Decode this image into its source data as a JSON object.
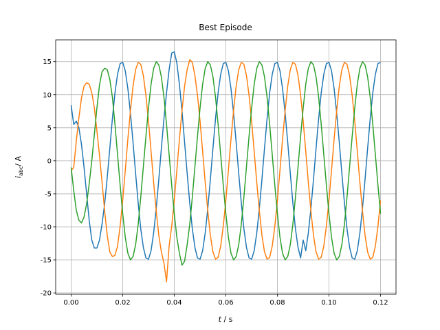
{
  "chart_data": {
    "type": "line",
    "title": "Best Episode",
    "xlabel_symbol": "t",
    "xlabel_unit": "/ s",
    "ylabel_symbol": "i",
    "ylabel_subscript": "abc",
    "ylabel_unit": "/ A",
    "grid": true,
    "xlim": [
      -0.006,
      0.126
    ],
    "ylim": [
      -20.2,
      18.3
    ],
    "xticks": [
      {
        "value": 0,
        "label": "0.00"
      },
      {
        "value": 0.02,
        "label": "0.02"
      },
      {
        "value": 0.04,
        "label": "0.04"
      },
      {
        "value": 0.06,
        "label": "0.06"
      },
      {
        "value": 0.08,
        "label": "0.08"
      },
      {
        "value": 0.1,
        "label": "0.10"
      },
      {
        "value": 0.12,
        "label": "0.12"
      }
    ],
    "yticks": [
      -20,
      -15,
      -10,
      -5,
      0,
      5,
      10,
      15
    ],
    "x": [
      0,
      0.001,
      0.002,
      0.003,
      0.004,
      0.005,
      0.006,
      0.007,
      0.008,
      0.009,
      0.01,
      0.011,
      0.012,
      0.013,
      0.014,
      0.015,
      0.016,
      0.017,
      0.018,
      0.019,
      0.02,
      0.021,
      0.022,
      0.023,
      0.024,
      0.025,
      0.026,
      0.027,
      0.028,
      0.029,
      0.03,
      0.031,
      0.032,
      0.033,
      0.034,
      0.035,
      0.036,
      0.037,
      0.038,
      0.039,
      0.04,
      0.041,
      0.042,
      0.043,
      0.044,
      0.045,
      0.046,
      0.047,
      0.048,
      0.049,
      0.05,
      0.051,
      0.052,
      0.053,
      0.054,
      0.055,
      0.056,
      0.057,
      0.058,
      0.059,
      0.06,
      0.061,
      0.062,
      0.063,
      0.064,
      0.065,
      0.066,
      0.067,
      0.068,
      0.069,
      0.07,
      0.071,
      0.072,
      0.073,
      0.074,
      0.075,
      0.076,
      0.077,
      0.078,
      0.079,
      0.08,
      0.081,
      0.082,
      0.083,
      0.084,
      0.085,
      0.086,
      0.087,
      0.088,
      0.089,
      0.09,
      0.091,
      0.092,
      0.093,
      0.094,
      0.095,
      0.096,
      0.097,
      0.098,
      0.099,
      0.1,
      0.101,
      0.102,
      0.103,
      0.104,
      0.105,
      0.106,
      0.107,
      0.108,
      0.109,
      0.11,
      0.111,
      0.112,
      0.113,
      0.114,
      0.115,
      0.116,
      0.117,
      0.118,
      0.119,
      0.12
    ],
    "series": [
      {
        "color": "#1f77b4",
        "values": [
          8.4,
          5.5,
          6.0,
          5.0,
          2.5,
          -1.0,
          -5.0,
          -9.0,
          -12.0,
          -13.2,
          -13.2,
          -12.0,
          -9.5,
          -6.5,
          -2.5,
          1.9,
          6.4,
          10.3,
          13.1,
          14.7,
          14.9,
          13.6,
          10.9,
          7.2,
          2.8,
          -1.9,
          -6.4,
          -10.3,
          -13.1,
          -14.7,
          -14.9,
          -13.6,
          -10.9,
          -7.2,
          -2.8,
          1.9,
          6.4,
          10.3,
          13.8,
          16.3,
          16.5,
          14.8,
          11.5,
          7.5,
          2.8,
          -1.9,
          -6.4,
          -10.3,
          -13.1,
          -14.7,
          -14.9,
          -13.6,
          -10.9,
          -7.2,
          -2.8,
          1.9,
          6.4,
          10.3,
          13.1,
          14.7,
          14.9,
          13.6,
          10.9,
          7.2,
          2.8,
          -1.9,
          -6.4,
          -10.3,
          -13.1,
          -14.7,
          -14.9,
          -13.6,
          -10.9,
          -7.2,
          -2.8,
          1.9,
          6.4,
          10.3,
          13.1,
          14.7,
          14.9,
          13.6,
          10.9,
          7.2,
          2.8,
          -1.9,
          -6.4,
          -10.3,
          -13.1,
          -14.7,
          -12.0,
          -13.6,
          -10.9,
          -7.2,
          -2.8,
          1.9,
          6.4,
          10.3,
          13.1,
          14.7,
          14.9,
          13.6,
          10.9,
          7.2,
          2.8,
          -1.9,
          -6.4,
          -10.3,
          -13.1,
          -14.7,
          -14.9,
          -13.6,
          -10.9,
          -7.2,
          -2.8,
          1.9,
          6.4,
          10.3,
          13.1,
          14.7,
          14.9
        ]
      },
      {
        "color": "#ff7f0e",
        "values": [
          -1.5,
          -1.0,
          3.0,
          6.5,
          9.5,
          11.3,
          11.8,
          11.6,
          10.3,
          8.0,
          4.5,
          0.8,
          -3.3,
          -7.6,
          -11.3,
          -13.8,
          -14.5,
          -14.3,
          -12.9,
          -9.9,
          -6.0,
          -1.4,
          3.3,
          7.6,
          11.3,
          13.8,
          14.9,
          14.6,
          12.9,
          9.9,
          6.0,
          1.4,
          -3.3,
          -7.6,
          -11.3,
          -13.8,
          -15.5,
          -18.3,
          -12.9,
          -9.9,
          -6.0,
          -1.4,
          3.3,
          7.6,
          11.3,
          13.8,
          15.3,
          14.9,
          12.9,
          9.9,
          6.0,
          1.4,
          -3.3,
          -7.6,
          -11.3,
          -13.8,
          -14.9,
          -14.6,
          -12.9,
          -9.9,
          -6.0,
          -1.4,
          3.3,
          7.6,
          11.3,
          13.8,
          14.9,
          14.6,
          12.9,
          9.9,
          6.0,
          1.4,
          -3.3,
          -7.6,
          -11.3,
          -13.8,
          -14.9,
          -14.6,
          -12.9,
          -9.9,
          -6.0,
          -1.4,
          3.3,
          7.6,
          11.3,
          13.8,
          14.9,
          14.6,
          12.9,
          9.9,
          6.0,
          1.4,
          -3.3,
          -7.6,
          -11.3,
          -13.8,
          -14.9,
          -14.6,
          -12.9,
          -9.9,
          -6.0,
          -1.4,
          3.3,
          7.6,
          11.3,
          13.8,
          14.9,
          14.6,
          12.9,
          9.9,
          6.0,
          1.4,
          -3.3,
          -7.6,
          -11.3,
          -13.8,
          -14.9,
          -14.6,
          -12.9,
          -9.9,
          -6.0
        ]
      },
      {
        "color": "#2ca02c",
        "values": [
          -1.0,
          -4.5,
          -7.5,
          -9.0,
          -9.4,
          -8.5,
          -6.5,
          -3.5,
          0.0,
          4.0,
          8.0,
          11.5,
          13.5,
          14.0,
          13.8,
          12.3,
          9.6,
          5.5,
          0.9,
          -3.7,
          -8.0,
          -11.6,
          -14.0,
          -15.0,
          -14.5,
          -12.7,
          -9.6,
          -5.5,
          -0.9,
          3.7,
          8.0,
          11.6,
          14.0,
          15.0,
          14.5,
          12.7,
          9.6,
          5.5,
          0.9,
          -3.7,
          -8.0,
          -11.6,
          -14.0,
          -15.8,
          -15.2,
          -12.7,
          -9.6,
          -5.5,
          -0.9,
          3.7,
          8.0,
          11.6,
          14.0,
          15.0,
          14.5,
          12.7,
          9.6,
          5.5,
          0.9,
          -3.7,
          -8.0,
          -11.6,
          -14.0,
          -15.0,
          -14.5,
          -12.7,
          -9.6,
          -5.5,
          -0.9,
          3.7,
          8.0,
          11.6,
          14.0,
          15.0,
          14.5,
          12.7,
          9.6,
          5.5,
          0.9,
          -3.7,
          -8.0,
          -11.6,
          -14.0,
          -15.0,
          -14.5,
          -12.7,
          -9.6,
          -5.5,
          -0.9,
          3.7,
          8.0,
          11.6,
          14.0,
          15.0,
          14.5,
          12.7,
          9.6,
          5.5,
          0.9,
          -3.7,
          -8.0,
          -11.6,
          -14.0,
          -15.0,
          -14.5,
          -12.7,
          -9.6,
          -5.5,
          -0.9,
          3.7,
          8.0,
          11.6,
          14.0,
          15.0,
          14.5,
          12.7,
          9.6,
          5.5,
          0.9,
          -3.7,
          -8.0
        ]
      }
    ]
  }
}
